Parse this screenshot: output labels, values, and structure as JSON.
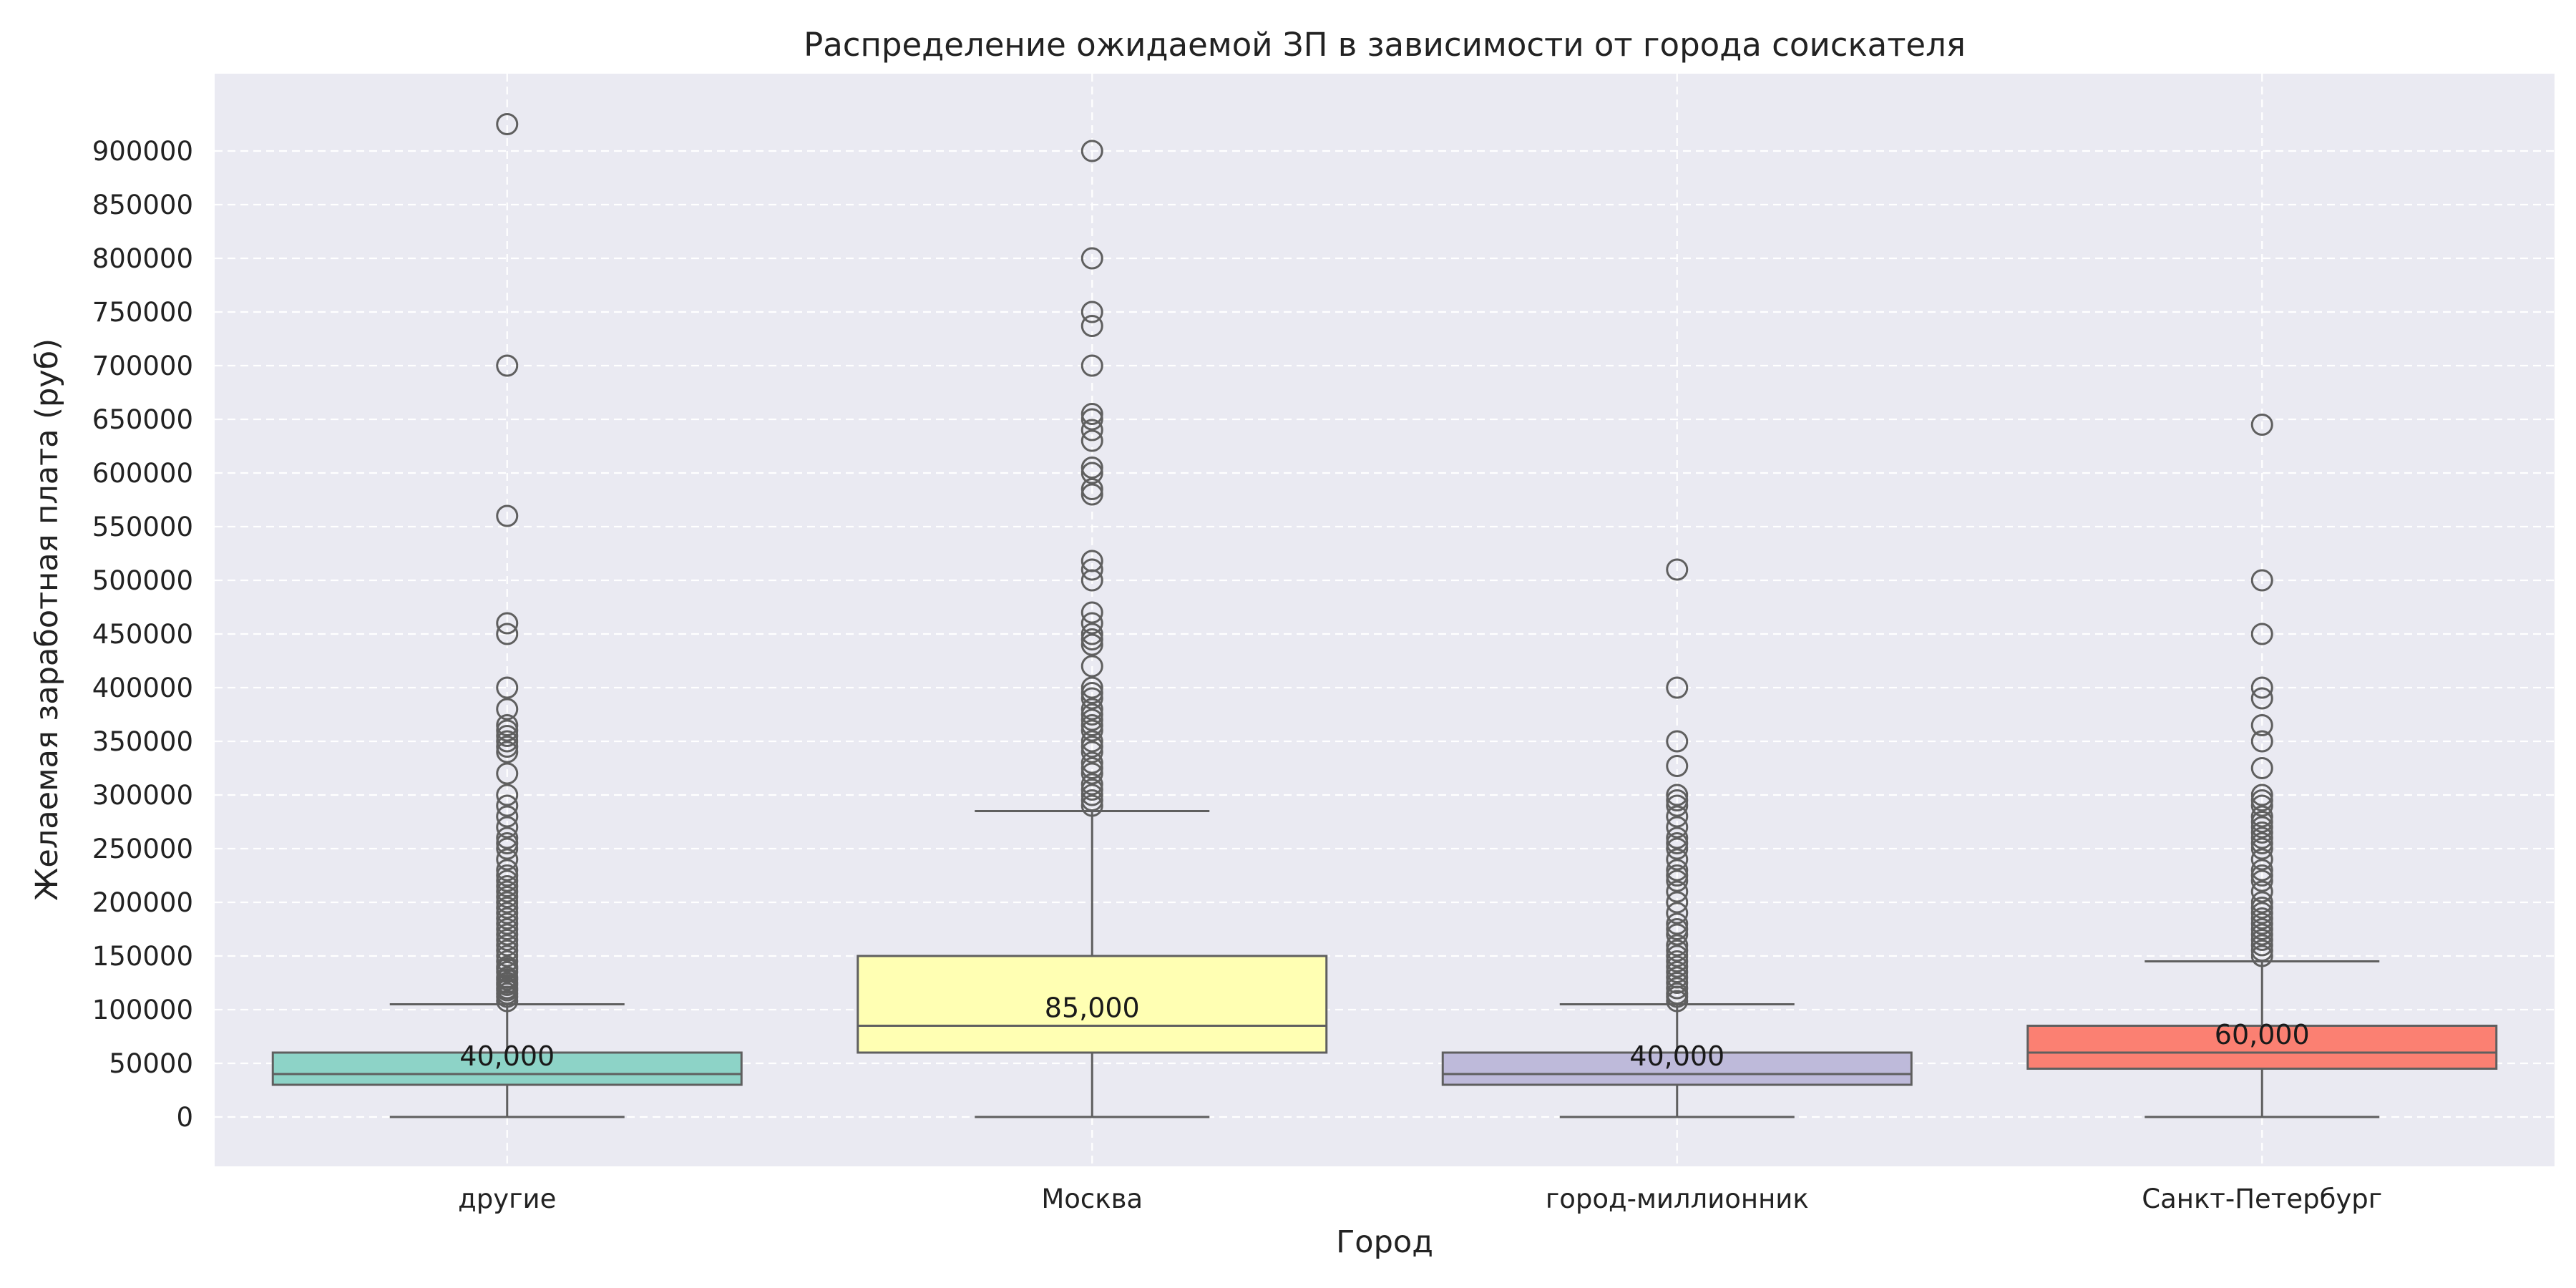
{
  "chart_data": {
    "type": "box",
    "title": "Распределение ожидаемой ЗП в зависимости от города соискателя",
    "xlabel": "Город",
    "ylabel": "Желаемая заработная плата (руб)",
    "ylim": [
      -45000,
      970000
    ],
    "yticks": [
      0,
      50000,
      100000,
      150000,
      200000,
      250000,
      300000,
      350000,
      400000,
      450000,
      500000,
      550000,
      600000,
      650000,
      700000,
      750000,
      800000,
      850000,
      900000
    ],
    "grid": true,
    "categories": [
      "другие",
      "Москва",
      "город-миллионник",
      "Санкт-Петербург"
    ],
    "boxes": [
      {
        "category": "другие",
        "color": "#8dd3c7",
        "whisker_low": 0,
        "q1": 30000,
        "median": 40000,
        "q3": 60000,
        "whisker_high": 105000,
        "median_label": "40,000",
        "outliers": [
          108000,
          112000,
          115000,
          118000,
          120000,
          123000,
          125000,
          128000,
          130000,
          135000,
          138000,
          140000,
          145000,
          150000,
          155000,
          160000,
          165000,
          170000,
          175000,
          180000,
          185000,
          190000,
          195000,
          200000,
          205000,
          210000,
          215000,
          220000,
          225000,
          230000,
          240000,
          250000,
          255000,
          260000,
          270000,
          280000,
          290000,
          300000,
          320000,
          340000,
          345000,
          350000,
          355000,
          360000,
          365000,
          380000,
          400000,
          450000,
          460000,
          560000,
          700000,
          925000
        ]
      },
      {
        "category": "Москва",
        "color": "#ffffb3",
        "whisker_low": 0,
        "q1": 60000,
        "median": 85000,
        "q3": 150000,
        "whisker_high": 285000,
        "median_label": "85,000",
        "outliers": [
          290000,
          295000,
          300000,
          305000,
          310000,
          320000,
          325000,
          330000,
          340000,
          345000,
          350000,
          360000,
          365000,
          370000,
          375000,
          380000,
          390000,
          395000,
          400000,
          420000,
          440000,
          445000,
          450000,
          460000,
          470000,
          500000,
          510000,
          518000,
          580000,
          585000,
          600000,
          605000,
          630000,
          640000,
          650000,
          655000,
          700000,
          737000,
          750000,
          800000,
          900000
        ]
      },
      {
        "category": "город-миллионник",
        "color": "#bebada",
        "whisker_low": 0,
        "q1": 30000,
        "median": 40000,
        "q3": 60000,
        "whisker_high": 105000,
        "median_label": "40,000",
        "outliers": [
          108000,
          112000,
          115000,
          120000,
          125000,
          130000,
          135000,
          140000,
          145000,
          150000,
          155000,
          160000,
          170000,
          175000,
          180000,
          190000,
          200000,
          210000,
          220000,
          225000,
          230000,
          240000,
          250000,
          255000,
          260000,
          270000,
          280000,
          290000,
          295000,
          300000,
          327000,
          350000,
          400000,
          510000
        ]
      },
      {
        "category": "Санкт-Петербург",
        "color": "#fb8072",
        "whisker_low": 0,
        "q1": 45000,
        "median": 60000,
        "q3": 85000,
        "whisker_high": 145000,
        "median_label": "60,000",
        "outliers": [
          150000,
          155000,
          160000,
          165000,
          170000,
          175000,
          180000,
          185000,
          190000,
          195000,
          200000,
          210000,
          220000,
          225000,
          230000,
          240000,
          250000,
          255000,
          260000,
          265000,
          270000,
          275000,
          280000,
          290000,
          295000,
          300000,
          325000,
          350000,
          365000,
          390000,
          400000,
          450000,
          500000,
          645000
        ]
      }
    ]
  }
}
